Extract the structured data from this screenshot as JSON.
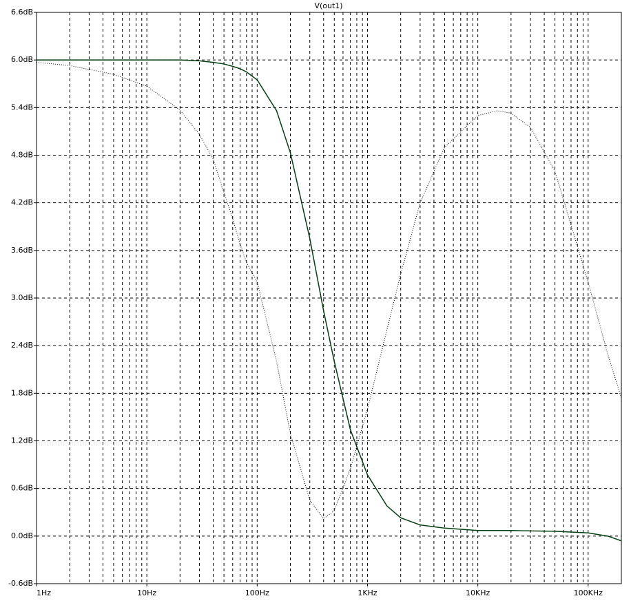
{
  "chart_data": {
    "type": "line",
    "title": "V(out1)",
    "xscale": "log",
    "grid": true,
    "xlim": [
      1,
      200000
    ],
    "xticks": [
      {
        "value": 1,
        "label": "1Hz"
      },
      {
        "value": 10,
        "label": "10Hz"
      },
      {
        "value": 100,
        "label": "100Hz"
      },
      {
        "value": 1000,
        "label": "1KHz"
      },
      {
        "value": 10000,
        "label": "10KHz"
      },
      {
        "value": 100000,
        "label": "100KHz"
      }
    ],
    "ylim": [
      -0.6,
      6.6
    ],
    "yticks": [
      {
        "value": -0.6,
        "label": "-0.6dB"
      },
      {
        "value": 0,
        "label": "0.0dB"
      },
      {
        "value": 0.6,
        "label": "0.6dB"
      },
      {
        "value": 1.2,
        "label": "1.2dB"
      },
      {
        "value": 1.8,
        "label": "1.8dB"
      },
      {
        "value": 2.4,
        "label": "2.4dB"
      },
      {
        "value": 3.0,
        "label": "3.0dB"
      },
      {
        "value": 3.6,
        "label": "3.6dB"
      },
      {
        "value": 4.2,
        "label": "4.2dB"
      },
      {
        "value": 4.8,
        "label": "4.8dB"
      },
      {
        "value": 5.4,
        "label": "5.4dB"
      },
      {
        "value": 6.0,
        "label": "6.0dB"
      },
      {
        "value": 6.6,
        "label": "6.6dB"
      }
    ],
    "x": [
      1,
      2,
      5,
      10,
      20,
      30,
      40,
      50,
      60,
      70,
      80,
      100,
      150,
      200,
      300,
      400,
      500,
      700,
      1000,
      1500,
      2000,
      3000,
      5000,
      10000,
      15000,
      20000,
      30000,
      50000,
      100000,
      150000,
      200000
    ],
    "series": [
      {
        "color": "#003f10",
        "style": "solid",
        "values": [
          6.0,
          6.0,
          6.0,
          6.0,
          6.0,
          5.99,
          5.97,
          5.95,
          5.92,
          5.89,
          5.85,
          5.75,
          5.36,
          4.83,
          3.75,
          2.84,
          2.2,
          1.34,
          0.77,
          0.38,
          0.23,
          0.14,
          0.1,
          0.07,
          0.07,
          0.07,
          0.065,
          0.06,
          0.04,
          0.0,
          -0.06
        ]
      },
      {
        "color": "#000000",
        "style": "dotted",
        "values": [
          5.97,
          5.93,
          5.82,
          5.67,
          5.37,
          5.06,
          4.75,
          4.33,
          4.0,
          3.68,
          3.45,
          3.2,
          2.2,
          1.29,
          0.45,
          0.22,
          0.32,
          0.85,
          1.6,
          2.6,
          3.3,
          4.2,
          4.9,
          5.3,
          5.36,
          5.33,
          5.15,
          4.6,
          3.2,
          2.3,
          1.74
        ]
      }
    ]
  }
}
